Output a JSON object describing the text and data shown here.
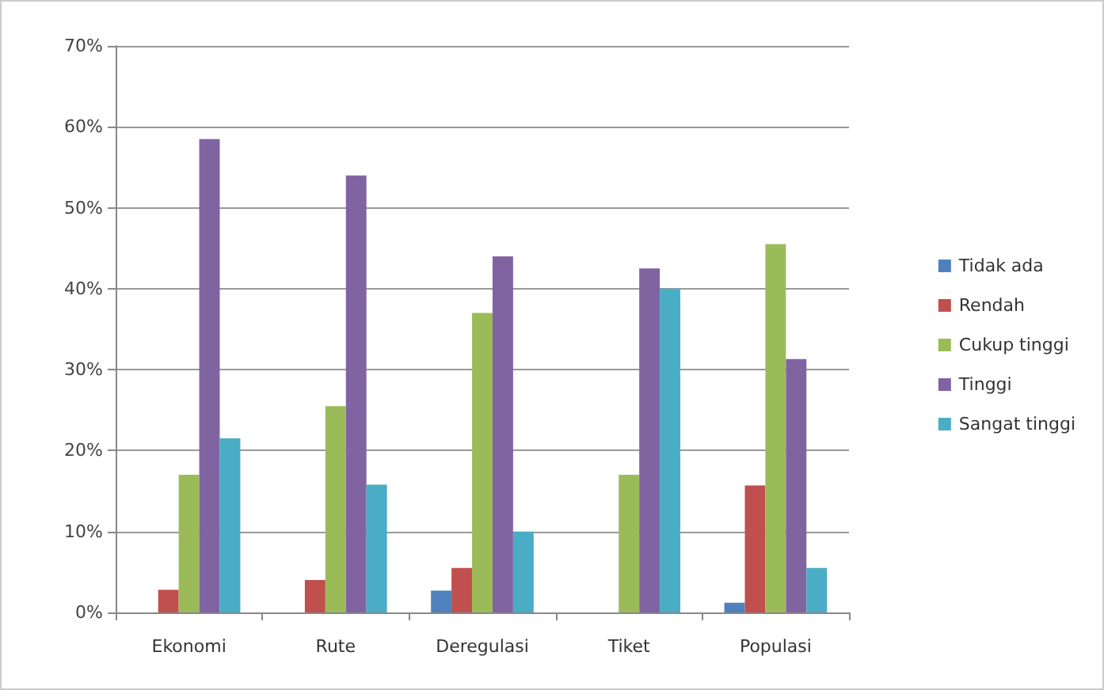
{
  "chart_data": {
    "type": "bar",
    "categories": [
      "Ekonomi",
      "Rute",
      "Deregulasi",
      "Tiket",
      "Populasi"
    ],
    "series": [
      {
        "name": "Tidak ada",
        "color": "#4f81bd",
        "values": [
          0,
          0,
          2.7,
          0,
          1.2
        ]
      },
      {
        "name": "Rendah",
        "color": "#c0504d",
        "values": [
          2.8,
          4,
          5.5,
          0,
          15.7
        ]
      },
      {
        "name": "Cukup tinggi",
        "color": "#9bbb59",
        "values": [
          17,
          25.5,
          37,
          17,
          45.5
        ]
      },
      {
        "name": "Tinggi",
        "color": "#8064a2",
        "values": [
          58.5,
          54,
          44,
          42.5,
          31.3
        ]
      },
      {
        "name": "Sangat tinggi",
        "color": "#4bacc6",
        "values": [
          21.5,
          15.8,
          10,
          40,
          5.5
        ]
      }
    ],
    "ylim": [
      0,
      70
    ],
    "yticks": [
      {
        "value": 0,
        "label": "0%"
      },
      {
        "value": 10,
        "label": "10%"
      },
      {
        "value": 20,
        "label": "20%"
      },
      {
        "value": 30,
        "label": "30%"
      },
      {
        "value": 40,
        "label": "40%"
      },
      {
        "value": 50,
        "label": "50%"
      },
      {
        "value": 60,
        "label": "60%"
      },
      {
        "value": 70,
        "label": "70%"
      }
    ],
    "grid": "y",
    "legend": "right"
  }
}
